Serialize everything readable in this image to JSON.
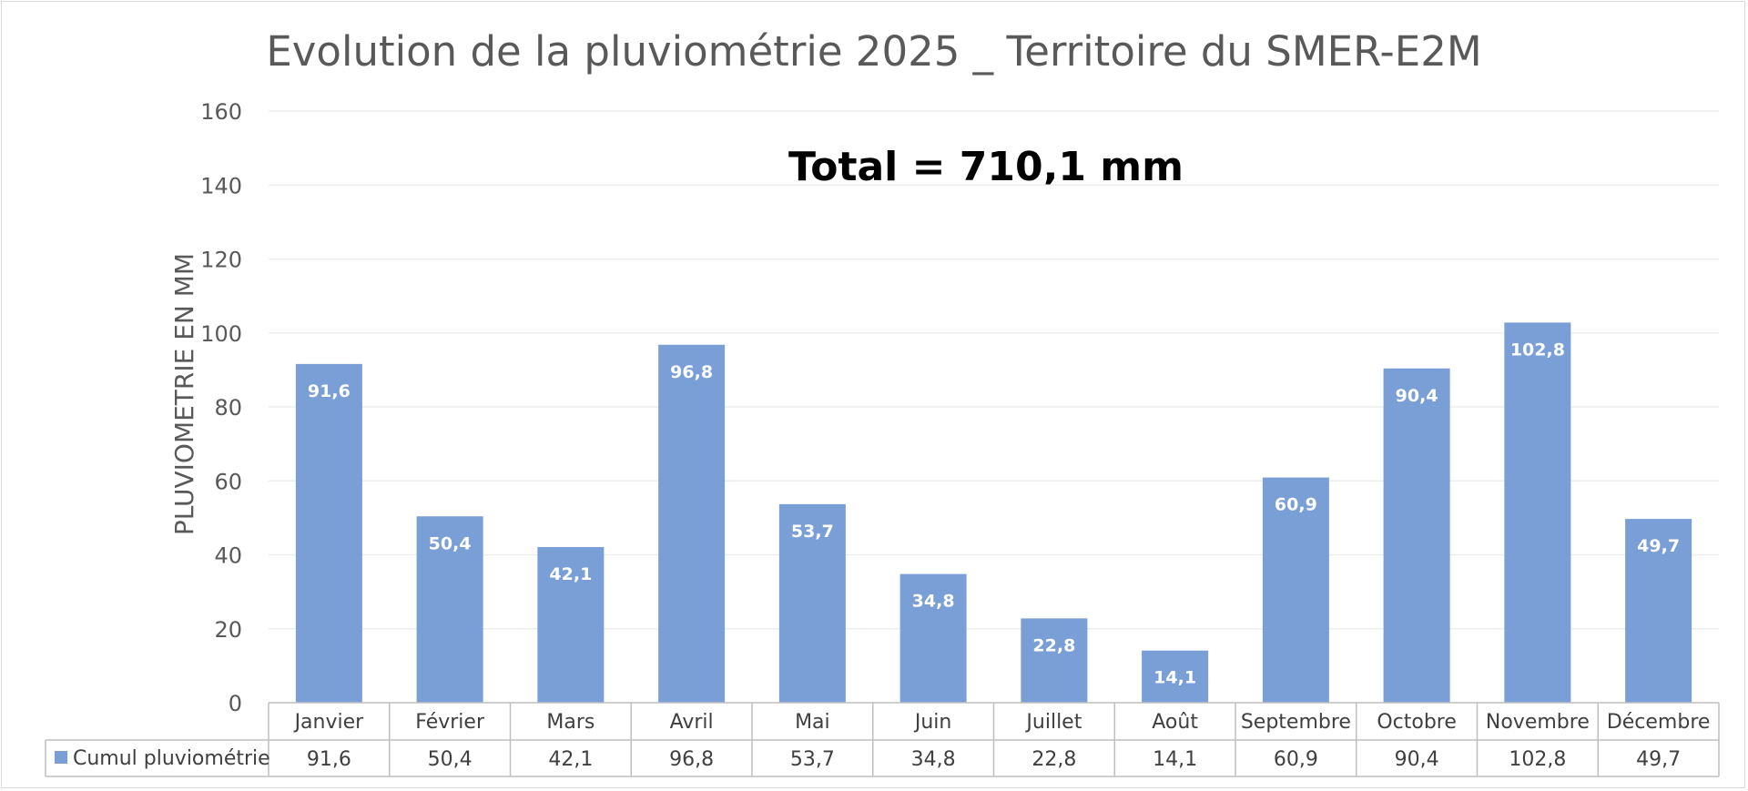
{
  "chart_data": {
    "type": "bar",
    "title": "Evolution de la pluviométrie 2025 _ Territoire du SMER-E2M",
    "annotation": "Total = 710,1 mm",
    "ylabel": "PLUVIOMETRIE EN MM",
    "xlabel": "",
    "ylim": [
      0,
      160
    ],
    "yticks": [
      0,
      20,
      40,
      60,
      80,
      100,
      120,
      140,
      160
    ],
    "grid": true,
    "categories": [
      "Janvier",
      "Février",
      "Mars",
      "Avril",
      "Mai",
      "Juin",
      "Juillet",
      "Août",
      "Septembre",
      "Octobre",
      "Novembre",
      "Décembre"
    ],
    "series": [
      {
        "name": "Cumul pluviométrie",
        "color": "#7a9fd6",
        "values": [
          91.6,
          50.4,
          42.1,
          96.8,
          53.7,
          34.8,
          22.8,
          14.1,
          60.9,
          90.4,
          102.8,
          49.7
        ],
        "labels": [
          "91,6",
          "50,4",
          "42,1",
          "96,8",
          "53,7",
          "34,8",
          "22,8",
          "14,1",
          "60,9",
          "90,4",
          "102,8",
          "49,7"
        ]
      }
    ],
    "data_table": true
  }
}
